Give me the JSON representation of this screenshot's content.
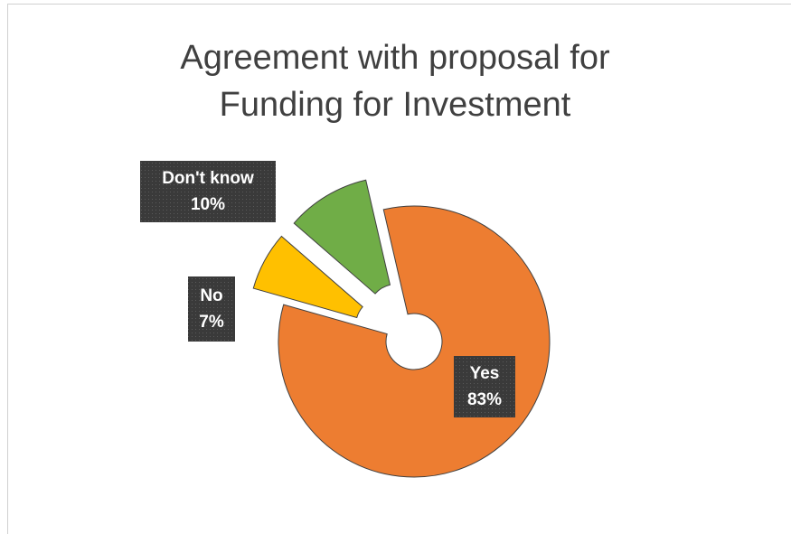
{
  "chart_data": {
    "type": "doughnut",
    "title": "Agreement with proposal for Funding for Investment",
    "categories": [
      "Yes",
      "No",
      "Don't know"
    ],
    "values": [
      83,
      7,
      10
    ],
    "value_labels": [
      "83%",
      "7%",
      "10%"
    ],
    "colors": [
      "#ed7d31",
      "#ffc000",
      "#70ad47"
    ]
  }
}
